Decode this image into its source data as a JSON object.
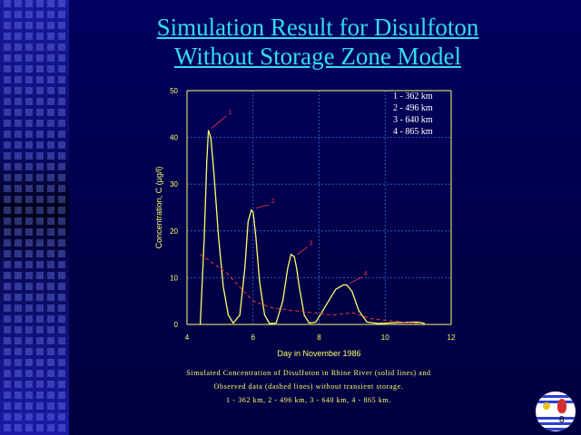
{
  "slide": {
    "title_line1": "Simulation Result for Disulfoton",
    "title_line2": "Without Storage Zone Model",
    "caption_line1": "Simulated Concentration of Disulfoton in Rhine River (solid lines) and",
    "caption_line2": "Observed data (dashed lines) without transient storage.",
    "caption_line3": "1 - 362 km, 2 - 496 km, 3 - 640 km, 4 - 865 km.",
    "page_number": "8"
  },
  "colors": {
    "background": "#00004a",
    "title": "#33ddee",
    "axis": "#ffff66",
    "simulated": "#ffff66",
    "observed": "#ff3333",
    "legend_text": "#ffffff"
  },
  "chart_data": {
    "type": "line",
    "title": "",
    "xlabel": "Day in November 1986",
    "ylabel": "Concentration, C (µg/l)",
    "xlim": [
      4,
      12
    ],
    "ylim": [
      0,
      50
    ],
    "xticks": [
      "4",
      "6",
      "8",
      "10",
      "12"
    ],
    "yticks": [
      "0",
      "10",
      "20",
      "30",
      "40",
      "50"
    ],
    "grid": true,
    "legend": {
      "placement": "top-right",
      "entries": [
        "1 - 362 km",
        "2 - 496 km",
        "3 - 640 km",
        "4 - 865 km"
      ]
    },
    "annotations": [
      "1",
      "2",
      "3",
      "4"
    ],
    "series": [
      {
        "style": "solid",
        "x": [
          4.4,
          4.52,
          4.6,
          4.65,
          4.72,
          4.82,
          4.95,
          5.1,
          5.25,
          5.4,
          5.6,
          5.75,
          5.85,
          5.95,
          6.0,
          6.08,
          6.2,
          6.35,
          6.5,
          6.7,
          6.9,
          7.05,
          7.15,
          7.25,
          7.32,
          7.4,
          7.55,
          7.7,
          7.9,
          8.2,
          8.5,
          8.75,
          8.85,
          9.0,
          9.2,
          9.45,
          9.8,
          10.4,
          11.0,
          11.2
        ],
        "y": [
          0,
          18,
          35,
          41.5,
          40,
          32,
          19,
          8,
          2,
          0.3,
          2,
          12,
          22,
          24.5,
          24,
          19,
          9,
          2,
          0.2,
          0.3,
          5,
          12,
          15,
          14.5,
          12,
          8,
          2,
          0.3,
          0.5,
          4,
          7.5,
          8.5,
          8.4,
          7,
          3,
          0.5,
          0.2,
          0.4,
          0.5,
          0.2
        ]
      },
      {
        "style": "dashed",
        "x": [
          4.4,
          4.7,
          5.2,
          5.6,
          6.0,
          6.6,
          7.2,
          7.8,
          8.4,
          9.0,
          9.6,
          10.4,
          11.0
        ],
        "y": [
          15,
          13.5,
          11,
          8,
          5,
          3.5,
          3,
          2.5,
          2,
          2.5,
          1.2,
          0.6,
          0.2
        ]
      }
    ]
  }
}
